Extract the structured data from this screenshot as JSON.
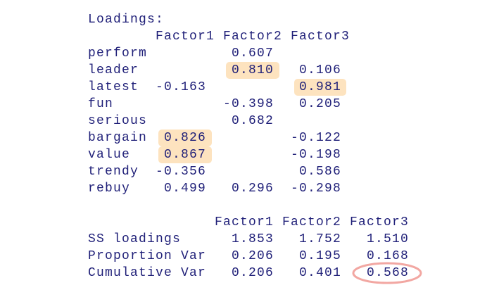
{
  "loadings": {
    "title": "Loadings:",
    "columns": [
      "Factor1",
      "Factor2",
      "Factor3"
    ],
    "rows": [
      {
        "name": "perform",
        "values": [
          null,
          "0.607",
          null
        ]
      },
      {
        "name": "leader",
        "values": [
          null,
          "0.810",
          "0.106"
        ]
      },
      {
        "name": "latest",
        "values": [
          "-0.163",
          null,
          "0.981"
        ]
      },
      {
        "name": "fun",
        "values": [
          null,
          "-0.398",
          "0.205"
        ]
      },
      {
        "name": "serious",
        "values": [
          null,
          "0.682",
          null
        ]
      },
      {
        "name": "bargain",
        "values": [
          "0.826",
          null,
          "-0.122"
        ]
      },
      {
        "name": "value",
        "values": [
          "0.867",
          null,
          "-0.198"
        ]
      },
      {
        "name": "trendy",
        "values": [
          "-0.356",
          null,
          "0.586"
        ]
      },
      {
        "name": "rebuy",
        "values": [
          "0.499",
          "0.296",
          "-0.298"
        ]
      }
    ]
  },
  "summary": {
    "columns": [
      "Factor1",
      "Factor2",
      "Factor3"
    ],
    "rows": [
      {
        "name": "SS loadings",
        "values": [
          "1.853",
          "1.752",
          "1.510"
        ]
      },
      {
        "name": "Proportion Var",
        "values": [
          "0.206",
          "0.195",
          "0.168"
        ]
      },
      {
        "name": "Cumulative Var",
        "values": [
          "0.206",
          "0.401",
          "0.568"
        ]
      }
    ]
  }
}
